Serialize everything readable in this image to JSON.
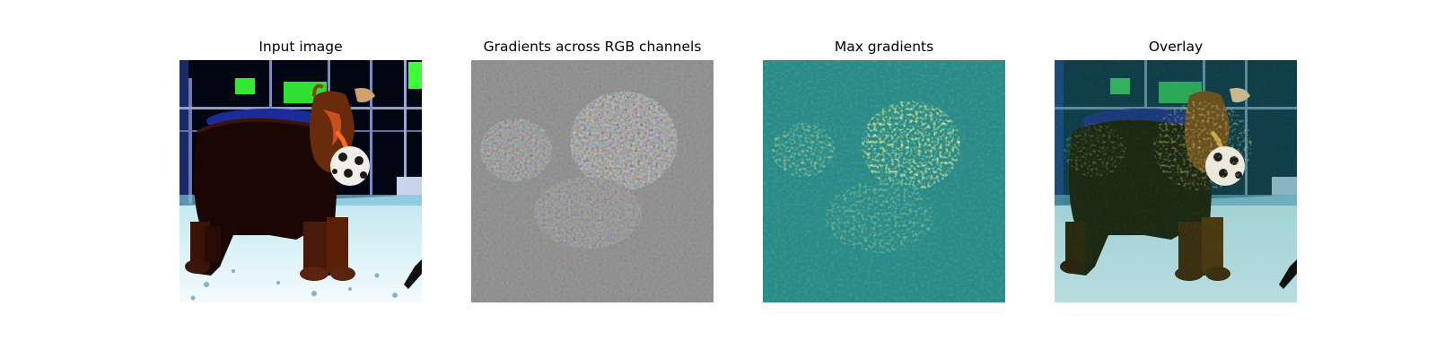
{
  "panels": [
    {
      "title": "Input image",
      "icon": "dog-photo"
    },
    {
      "title": "Gradients across RGB channels",
      "icon": "rgb-gradient-map"
    },
    {
      "title": "Max gradients",
      "icon": "max-gradient-heatmap"
    },
    {
      "title": "Overlay",
      "icon": "gradient-overlay-photo"
    }
  ],
  "colors": {
    "background": "#ffffff",
    "gradient_gray": "#8a8a8a",
    "heatmap_teal": "#2a8c8a",
    "heatmap_yellow": "#e8e84a",
    "window_green": "#2fe02f",
    "floor_cyan": "#d8f2f6"
  }
}
